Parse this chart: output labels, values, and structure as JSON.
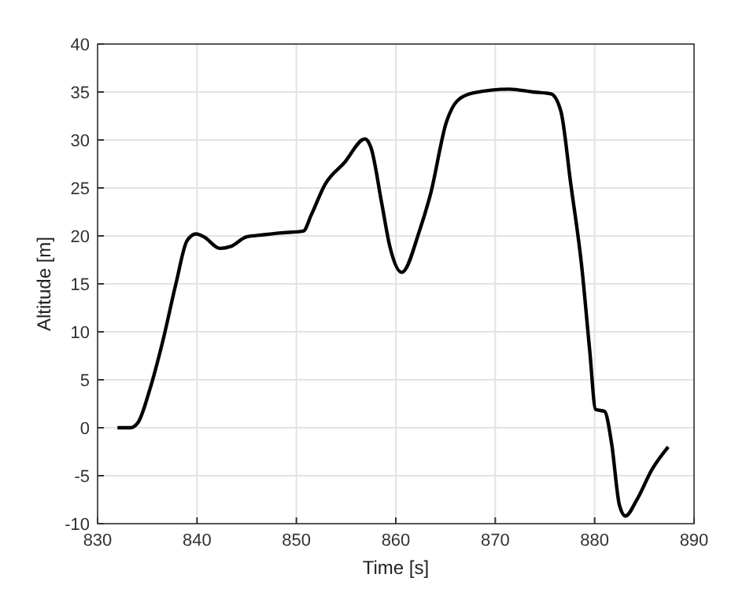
{
  "chart_data": {
    "type": "line",
    "xlabel": "Time [s]",
    "ylabel": "Altitude [m]",
    "grid": true,
    "marker": "none",
    "line_style": "solid",
    "xlim": [
      830,
      890
    ],
    "xticks": [
      830,
      840,
      850,
      860,
      870,
      880,
      890
    ],
    "ylim": [
      -10,
      40
    ],
    "yticks": [
      -10,
      -5,
      0,
      5,
      10,
      15,
      20,
      25,
      30,
      35,
      40
    ],
    "series": [
      {
        "color": "#000000",
        "x": [
          832.0,
          833.3,
          834.1,
          835.2,
          836.6,
          837.9,
          839.0,
          839.9,
          840.7,
          842.3,
          843.4,
          845.0,
          846.6,
          848.3,
          850.7,
          851.5,
          852.9,
          854.8,
          856.9,
          857.5,
          858.6,
          859.4,
          860.6,
          862.4,
          863.5,
          865.1,
          866.2,
          867.8,
          871.4,
          873.8,
          875.6,
          876.6,
          877.6,
          878.7,
          879.5,
          880.1,
          881.0,
          881.7,
          882.5,
          883.1,
          884.2,
          885.8,
          887.4
        ],
        "values": [
          0,
          0,
          0.6,
          3.8,
          9.2,
          15.1,
          19.5,
          20.2,
          19.9,
          18.7,
          18.9,
          19.9,
          20.1,
          20.3,
          20.5,
          22.2,
          25.4,
          27.6,
          30.1,
          29.2,
          23.3,
          18.9,
          16.2,
          20.6,
          24.4,
          31.9,
          34.1,
          34.9,
          35.3,
          35.0,
          34.8,
          33.0,
          25.4,
          16.8,
          8.1,
          1.9,
          1.7,
          -1.6,
          -8.1,
          -9.2,
          -7.6,
          -4.3,
          -2.0
        ]
      }
    ]
  }
}
